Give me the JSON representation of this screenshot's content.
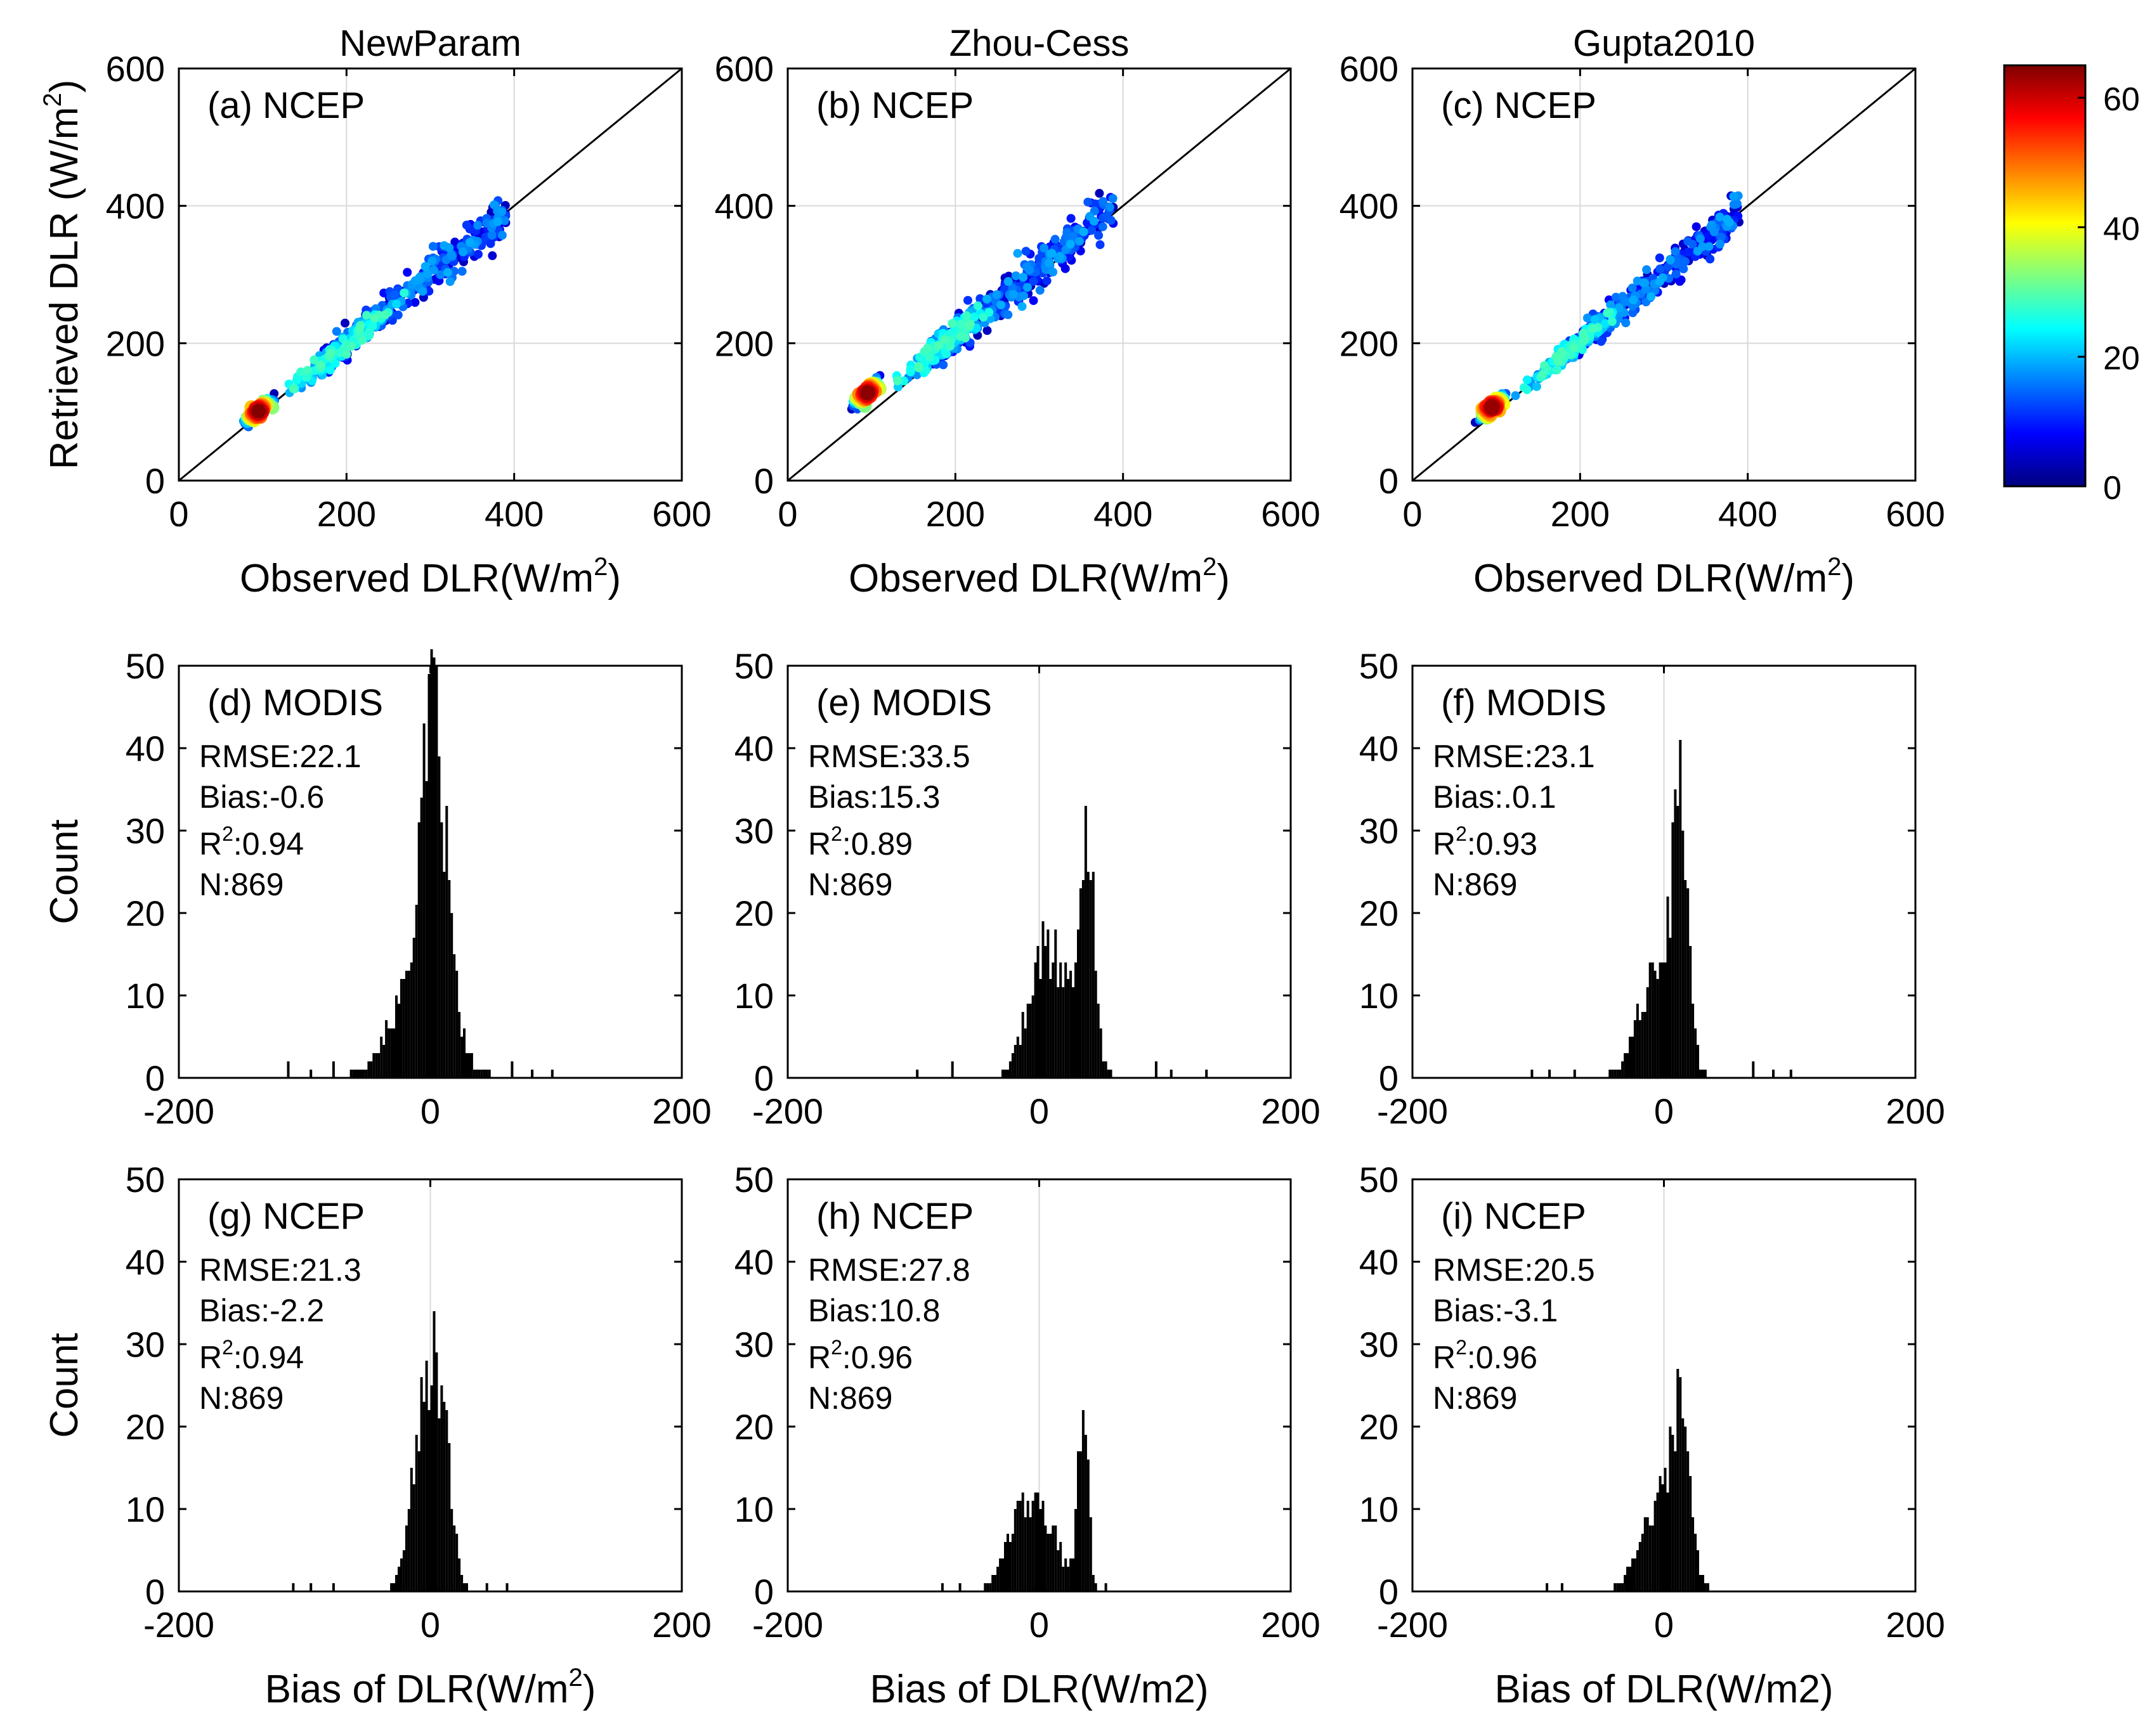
{
  "figure_kind": "Multi-panel scatter density plots and bias histograms",
  "colorbar": {
    "ticks": [
      "0",
      "20",
      "40",
      "60"
    ],
    "min": 0,
    "max": 65,
    "colors": [
      "#00007f",
      "#0000ff",
      "#007fff",
      "#00ffff",
      "#7fff7f",
      "#ffff00",
      "#ff7f00",
      "#ff0000",
      "#7f0000"
    ]
  },
  "chart_data": [
    {
      "panel": "a",
      "type": "scatter",
      "column_title": "NewParam",
      "label": "(a) NCEP",
      "xlabel": "Observed DLR(W/m",
      "ylabel": "Retrieved DLR (W/m",
      "label_sup": "2",
      "label_close": ")",
      "xlim": [
        0,
        600
      ],
      "ylim": [
        0,
        600
      ],
      "xticks": [
        "0",
        "200",
        "400",
        "600"
      ],
      "yticks": [
        "0",
        "200",
        "400",
        "600"
      ],
      "offset": -2,
      "spread": 18,
      "seed": 11
    },
    {
      "panel": "b",
      "type": "scatter",
      "column_title": "Zhou-Cess",
      "label": "(b) NCEP",
      "xlabel": "Observed DLR(W/m",
      "ylabel": "",
      "label_sup": "2",
      "label_close": ")",
      "xlim": [
        0,
        600
      ],
      "ylim": [
        0,
        600
      ],
      "xticks": [
        "0",
        "200",
        "400",
        "600"
      ],
      "yticks": [
        "0",
        "200",
        "400",
        "600"
      ],
      "offset": 25,
      "spread": 20,
      "seed": 23
    },
    {
      "panel": "c",
      "type": "scatter",
      "column_title": "Gupta2010",
      "label": "(c) NCEP",
      "xlabel": "Observed DLR(W/m",
      "ylabel": "",
      "label_sup": "2",
      "label_close": ")",
      "xlim": [
        0,
        600
      ],
      "ylim": [
        0,
        600
      ],
      "xticks": [
        "0",
        "200",
        "400",
        "600"
      ],
      "yticks": [
        "0",
        "200",
        "400",
        "600"
      ],
      "offset": 4,
      "spread": 16,
      "seed": 37
    },
    {
      "panel": "d",
      "type": "histogram",
      "label": "(d) MODIS",
      "stats": [
        "RMSE:22.1",
        "Bias:-0.6"
      ],
      "r2_prefix": "R",
      "r2_sup": "2",
      "r2_value": ":0.94",
      "n_text": "N:869",
      "ylabel": "Count",
      "xlabel": "",
      "xlim": [
        -200,
        200
      ],
      "ylim": [
        0,
        50
      ],
      "xticks": [
        "-200",
        "0",
        "200"
      ],
      "yticks": [
        "0",
        "10",
        "20",
        "30",
        "40",
        "50"
      ],
      "bin_width": 2,
      "components": [
        [
          2,
          10,
          36
        ],
        [
          -10,
          22,
          12
        ]
      ],
      "outliers": [
        [
          -114,
          2
        ],
        [
          -96,
          1
        ],
        [
          -78,
          2
        ],
        [
          -62,
          1
        ],
        [
          64,
          2
        ],
        [
          80,
          1
        ],
        [
          96,
          1
        ]
      ],
      "seed": 101
    },
    {
      "panel": "e",
      "type": "histogram",
      "label": "(e) MODIS",
      "stats": [
        "RMSE:33.5",
        "Bias:15.3"
      ],
      "r2_prefix": "R",
      "r2_sup": "2",
      "r2_value": ":0.89",
      "n_text": "N:869",
      "ylabel": "",
      "xlabel": "",
      "xlim": [
        -200,
        200
      ],
      "ylim": [
        0,
        50
      ],
      "xticks": [
        "-200",
        "0",
        "200"
      ],
      "yticks": [
        "0",
        "10",
        "20",
        "30",
        "40",
        "50"
      ],
      "bin_width": 2,
      "components": [
        [
          38,
          5,
          28
        ],
        [
          0,
          12,
          14
        ],
        [
          22,
          14,
          10
        ]
      ],
      "outliers": [
        [
          -98,
          1
        ],
        [
          -70,
          2
        ],
        [
          92,
          2
        ],
        [
          104,
          1
        ],
        [
          132,
          1
        ]
      ],
      "seed": 202
    },
    {
      "panel": "f",
      "type": "histogram",
      "label": "(f) MODIS",
      "stats": [
        "RMSE:23.1",
        "Bias:.0.1"
      ],
      "r2_prefix": "R",
      "r2_sup": "2",
      "r2_value": ":0.93",
      "n_text": "N:869",
      "ylabel": "",
      "xlabel": "",
      "xlim": [
        -200,
        200
      ],
      "ylim": [
        0,
        50
      ],
      "xticks": [
        "-200",
        "0",
        "200"
      ],
      "yticks": [
        "0",
        "10",
        "20",
        "30",
        "40",
        "50"
      ],
      "bin_width": 2,
      "components": [
        [
          12,
          6,
          30
        ],
        [
          -6,
          15,
          14
        ]
      ],
      "outliers": [
        [
          -106,
          1
        ],
        [
          -92,
          1
        ],
        [
          -72,
          1
        ],
        [
          70,
          2
        ],
        [
          86,
          1
        ],
        [
          100,
          1
        ]
      ],
      "seed": 303
    },
    {
      "panel": "g",
      "type": "histogram",
      "label": "(g) NCEP",
      "stats": [
        "RMSE:21.3",
        "Bias:-2.2"
      ],
      "r2_prefix": "R",
      "r2_sup": "2",
      "r2_value": ":0.94",
      "n_text": "N:869",
      "ylabel": "Count",
      "xlabel": "Bias of DLR(W/m",
      "xlabel_sup": "2",
      "xlabel_close": ")",
      "xlim": [
        -200,
        200
      ],
      "ylim": [
        0,
        50
      ],
      "xticks": [
        "-200",
        "0",
        "200"
      ],
      "yticks": [
        "0",
        "10",
        "20",
        "30",
        "40",
        "50"
      ],
      "bin_width": 2,
      "components": [
        [
          -6,
          10,
          22
        ],
        [
          8,
          8,
          18
        ]
      ],
      "outliers": [
        [
          -110,
          1
        ],
        [
          -96,
          1
        ],
        [
          -78,
          1
        ],
        [
          44,
          1
        ],
        [
          60,
          1
        ]
      ],
      "seed": 404
    },
    {
      "panel": "h",
      "type": "histogram",
      "label": "(h) NCEP",
      "stats": [
        "RMSE:27.8",
        "Bias:10.8"
      ],
      "r2_prefix": "R",
      "r2_sup": "2",
      "r2_value": ":0.96",
      "n_text": "N:869",
      "ylabel": "",
      "xlabel": "Bias of DLR(W/m2)",
      "xlim": [
        -200,
        200
      ],
      "ylim": [
        0,
        50
      ],
      "xticks": [
        "-200",
        "0",
        "200"
      ],
      "yticks": [
        "0",
        "10",
        "20",
        "30",
        "40",
        "50"
      ],
      "bin_width": 2,
      "components": [
        [
          34,
          4,
          22
        ],
        [
          0,
          16,
          9
        ],
        [
          -20,
          12,
          5
        ]
      ],
      "outliers": [
        [
          -78,
          1
        ],
        [
          -64,
          1
        ],
        [
          52,
          1
        ]
      ],
      "seed": 505
    },
    {
      "panel": "i",
      "type": "histogram",
      "label": "(i) NCEP",
      "stats": [
        "RMSE:20.5",
        "Bias:-3.1"
      ],
      "r2_prefix": "R",
      "r2_sup": "2",
      "r2_value": ":0.96",
      "n_text": "N:869",
      "ylabel": "",
      "xlabel": "Bias of DLR(W/m2)",
      "xlim": [
        -200,
        200
      ],
      "ylim": [
        0,
        50
      ],
      "xticks": [
        "-200",
        "0",
        "200"
      ],
      "yticks": [
        "0",
        "10",
        "20",
        "30",
        "40",
        "50"
      ],
      "bin_width": 2,
      "components": [
        [
          12,
          8,
          20
        ],
        [
          -8,
          14,
          10
        ]
      ],
      "outliers": [
        [
          -94,
          1
        ],
        [
          -82,
          1
        ],
        [
          34,
          1
        ]
      ],
      "seed": 606
    }
  ]
}
